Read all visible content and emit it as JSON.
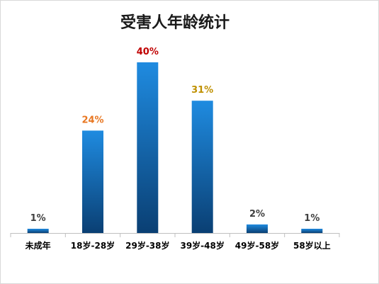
{
  "chart_data": {
    "type": "bar",
    "title": "受害人年龄统计",
    "categories": [
      "未成年",
      "18岁-28岁",
      "29岁-38岁",
      "39岁-48岁",
      "49岁-58岁",
      "58岁以上"
    ],
    "values": [
      1,
      24,
      40,
      31,
      2,
      1
    ],
    "data_labels": [
      "1%",
      "24%",
      "40%",
      "31%",
      "2%",
      "1%"
    ],
    "label_colors": [
      "#404040",
      "#e87722",
      "#c00000",
      "#bf9000",
      "#404040",
      "#404040"
    ],
    "bar_color_top": "#1f8be0",
    "bar_color_bottom": "#0a3f73",
    "ylim": [
      0,
      40
    ],
    "grid": false,
    "legend": "none"
  }
}
